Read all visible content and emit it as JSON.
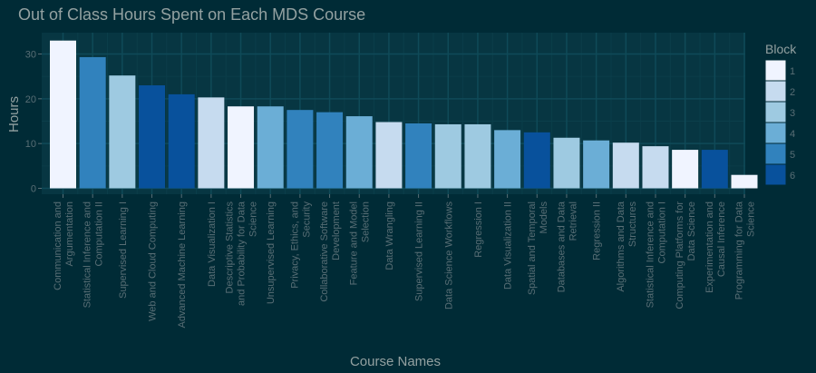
{
  "chart_data": {
    "type": "bar",
    "title": "Out of Class Hours Spent on Each MDS Course",
    "xlabel": "Course Names",
    "ylabel": "Hours",
    "ylim": [
      0,
      35
    ],
    "yticks": [
      0,
      10,
      20,
      30
    ],
    "grid": true,
    "legend": {
      "title": "Block",
      "placement": "right",
      "entries": [
        "1",
        "2",
        "3",
        "4",
        "5",
        "6"
      ]
    },
    "block_colors": {
      "1": "#f0f4ff",
      "2": "#c6dbef",
      "3": "#9ecae1",
      "4": "#6baed6",
      "5": "#3182bd",
      "6": "#08519c"
    },
    "categories": [
      [
        "Communication and",
        "Argumentation"
      ],
      [
        "Statistical Inference and",
        "Computation II"
      ],
      [
        "Supervised Learning I"
      ],
      [
        "Web and Cloud Computing"
      ],
      [
        "Advanced Machine Learning"
      ],
      [
        "Data Visualization I"
      ],
      [
        "Descriptive Statistics",
        "and Probability for Data",
        "Science"
      ],
      [
        "Unsupervised Learning"
      ],
      [
        "Privacy, Ethics, and",
        "Security"
      ],
      [
        "Collaborative Software",
        "Development"
      ],
      [
        "Feature and Model",
        "Selection"
      ],
      [
        "Data Wrangling"
      ],
      [
        "Supervised Learning II"
      ],
      [
        "Data Science Workflows"
      ],
      [
        "Regression I"
      ],
      [
        "Data Visualization II"
      ],
      [
        "Spatial and Temporal",
        "Models"
      ],
      [
        "Databases and Data",
        "Retrieval"
      ],
      [
        "Regression II"
      ],
      [
        "Algorithms and Data",
        "Structures"
      ],
      [
        "Statistical Inference and",
        "Computation I"
      ],
      [
        "Computing Platforms for",
        "Data Science"
      ],
      [
        "Experimentation and",
        "Causal Inference"
      ],
      [
        "Programming for Data",
        "Science"
      ]
    ],
    "values": [
      33,
      29.3,
      25.2,
      23,
      21,
      20.3,
      18.3,
      18.3,
      17.5,
      17,
      16.1,
      14.8,
      14.5,
      14.3,
      14.3,
      13,
      12.5,
      11.3,
      10.7,
      10.2,
      9.4,
      8.6,
      8.6,
      3
    ],
    "blocks": [
      1,
      5,
      3,
      6,
      6,
      2,
      1,
      4,
      5,
      5,
      4,
      2,
      5,
      3,
      3,
      4,
      6,
      3,
      4,
      2,
      2,
      1,
      6,
      1
    ]
  }
}
